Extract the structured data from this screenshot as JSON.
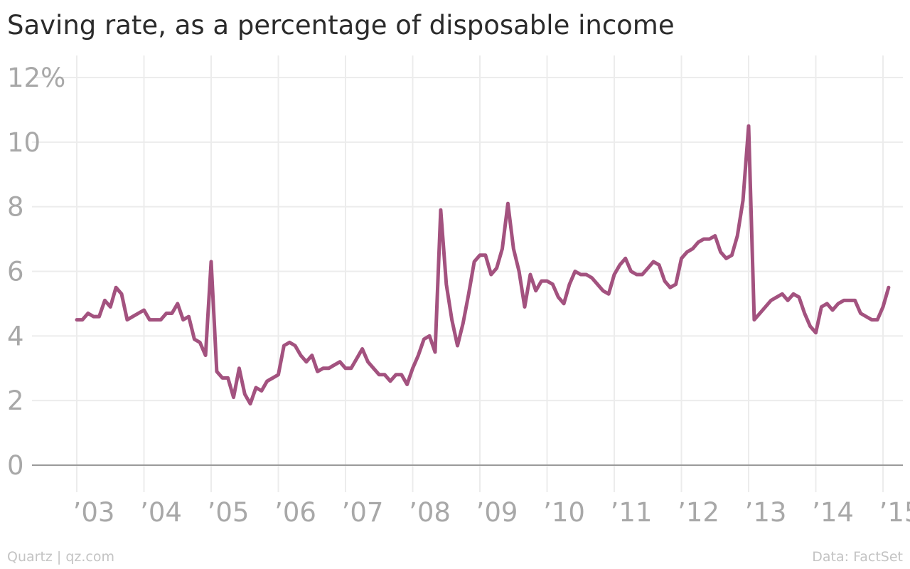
{
  "header": {
    "title": "Saving rate, as a percentage of disposable income"
  },
  "footer": {
    "credit": "Quartz | qz.com",
    "source": "Data: FactSet"
  },
  "chart_data": {
    "type": "line",
    "title": "Saving rate, as a percentage of disposable income",
    "xlabel": "",
    "ylabel": "",
    "ylim": [
      0,
      12
    ],
    "y_ticks": [
      0,
      2,
      4,
      6,
      8,
      10,
      12
    ],
    "y_tick_labels": [
      "0",
      "2",
      "4",
      "6",
      "8",
      "10",
      "12%"
    ],
    "x_ticks": [
      2003,
      2004,
      2005,
      2006,
      2007,
      2008,
      2009,
      2010,
      2011,
      2012,
      2013,
      2014,
      2015
    ],
    "x_tick_labels": [
      "’03",
      "’04",
      "’05",
      "’06",
      "’07",
      "’08",
      "’09",
      "’10",
      "’11",
      "’12",
      "’13",
      "’14",
      "’15"
    ],
    "grid": true,
    "line_color": "#a3527f",
    "series": [
      {
        "x": [
          "2003-01",
          "2003-02",
          "2003-03",
          "2003-04",
          "2003-05",
          "2003-06",
          "2003-07",
          "2003-08",
          "2003-09",
          "2003-10",
          "2003-11",
          "2003-12",
          "2004-01",
          "2004-02",
          "2004-03",
          "2004-04",
          "2004-05",
          "2004-06",
          "2004-07",
          "2004-08",
          "2004-09",
          "2004-10",
          "2004-11",
          "2004-12",
          "2005-01",
          "2005-02",
          "2005-03",
          "2005-04",
          "2005-05",
          "2005-06",
          "2005-07",
          "2005-08",
          "2005-09",
          "2005-10",
          "2005-11",
          "2005-12",
          "2006-01",
          "2006-02",
          "2006-03",
          "2006-04",
          "2006-05",
          "2006-06",
          "2006-07",
          "2006-08",
          "2006-09",
          "2006-10",
          "2006-11",
          "2006-12",
          "2007-01",
          "2007-02",
          "2007-03",
          "2007-04",
          "2007-05",
          "2007-06",
          "2007-07",
          "2007-08",
          "2007-09",
          "2007-10",
          "2007-11",
          "2007-12",
          "2008-01",
          "2008-02",
          "2008-03",
          "2008-04",
          "2008-05",
          "2008-06",
          "2008-07",
          "2008-08",
          "2008-09",
          "2008-10",
          "2008-11",
          "2008-12",
          "2009-01",
          "2009-02",
          "2009-03",
          "2009-04",
          "2009-05",
          "2009-06",
          "2009-07",
          "2009-08",
          "2009-09",
          "2009-10",
          "2009-11",
          "2009-12",
          "2010-01",
          "2010-02",
          "2010-03",
          "2010-04",
          "2010-05",
          "2010-06",
          "2010-07",
          "2010-08",
          "2010-09",
          "2010-10",
          "2010-11",
          "2010-12",
          "2011-01",
          "2011-02",
          "2011-03",
          "2011-04",
          "2011-05",
          "2011-06",
          "2011-07",
          "2011-08",
          "2011-09",
          "2011-10",
          "2011-11",
          "2011-12",
          "2012-01",
          "2012-02",
          "2012-03",
          "2012-04",
          "2012-05",
          "2012-06",
          "2012-07",
          "2012-08",
          "2012-09",
          "2012-10",
          "2012-11",
          "2012-12",
          "2013-01",
          "2013-02",
          "2013-03",
          "2013-04",
          "2013-05",
          "2013-06",
          "2013-07",
          "2013-08",
          "2013-09",
          "2013-10",
          "2013-11",
          "2013-12",
          "2014-01",
          "2014-02",
          "2014-03",
          "2014-04",
          "2014-05",
          "2014-06",
          "2014-07",
          "2014-08",
          "2014-09",
          "2014-10",
          "2014-11",
          "2014-12",
          "2015-01",
          "2015-02"
        ],
        "values": [
          4.5,
          4.5,
          4.7,
          4.6,
          4.6,
          5.1,
          4.9,
          5.5,
          5.3,
          4.5,
          4.6,
          4.7,
          4.8,
          4.5,
          4.5,
          4.5,
          4.7,
          4.7,
          5.0,
          4.5,
          4.6,
          3.9,
          3.8,
          3.4,
          6.3,
          2.9,
          2.7,
          2.7,
          2.1,
          3.0,
          2.2,
          1.9,
          2.4,
          2.3,
          2.6,
          2.7,
          2.8,
          3.7,
          3.8,
          3.7,
          3.4,
          3.2,
          3.4,
          2.9,
          3.0,
          3.0,
          3.1,
          3.2,
          3.0,
          3.0,
          3.3,
          3.6,
          3.2,
          3.0,
          2.8,
          2.8,
          2.6,
          2.8,
          2.8,
          2.5,
          3.0,
          3.4,
          3.9,
          4.0,
          3.5,
          7.9,
          5.6,
          4.5,
          3.7,
          4.4,
          5.3,
          6.3,
          6.5,
          6.5,
          5.9,
          6.1,
          6.7,
          8.1,
          6.7,
          6.0,
          4.9,
          5.9,
          5.4,
          5.7,
          5.7,
          5.6,
          5.2,
          5.0,
          5.6,
          6.0,
          5.9,
          5.9,
          5.8,
          5.6,
          5.4,
          5.3,
          5.9,
          6.2,
          6.4,
          6.0,
          5.9,
          5.9,
          6.1,
          6.3,
          6.2,
          5.7,
          5.5,
          5.6,
          6.4,
          6.6,
          6.7,
          6.9,
          7.0,
          7.0,
          7.1,
          6.6,
          6.4,
          6.5,
          7.1,
          8.2,
          10.5,
          4.5,
          4.7,
          4.9,
          5.1,
          5.2,
          5.3,
          5.1,
          5.3,
          5.2,
          4.7,
          4.3,
          4.1,
          4.9,
          5.0,
          4.8,
          5.0,
          5.1,
          5.1,
          5.1,
          4.7,
          4.6,
          4.5,
          4.5,
          4.9,
          5.5
        ]
      }
    ]
  }
}
